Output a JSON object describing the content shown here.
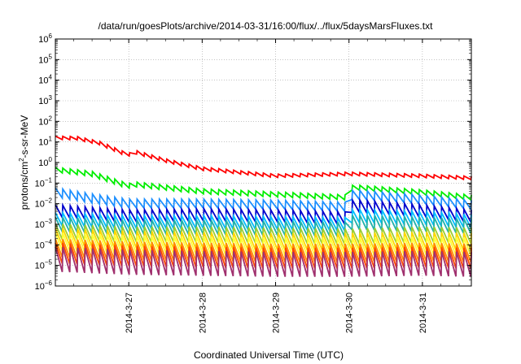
{
  "chart_data": {
    "type": "line",
    "title": "/data/run/goesPlots/archive/2014-03-31/16:00/flux/../flux/5daysMarsFluxes.txt",
    "xlabel": "Coordinated Universal Time (UTC)",
    "ylabel": "protons/cm²-s-sr-MeV",
    "ylabel_parts": {
      "pre": "protons/cm",
      "sup": "2",
      "post": "-s-sr-MeV"
    },
    "yscale": "log",
    "ylim_exp": [
      -6,
      6
    ],
    "ytick_exponents": [
      -6,
      -5,
      -4,
      -3,
      -2,
      -1,
      0,
      1,
      2,
      3,
      4,
      5,
      6
    ],
    "xlim": [
      "2014-03-26 00:00",
      "2014-03-31 16:00"
    ],
    "xticks": [
      "2014-3-27",
      "2014-3-28",
      "2014-3-29",
      "2014-3-30",
      "2014-3-31"
    ],
    "grid": true,
    "sawtooth_teeth": 56,
    "resets_day": [
      1.0,
      4.0
    ],
    "series": [
      {
        "color": "#ff0000",
        "trend": [
          [
            0.0,
            1.2
          ],
          [
            0.3,
            1.18
          ],
          [
            0.6,
            0.95
          ],
          [
            0.9,
            0.5
          ],
          [
            1.0,
            0.35
          ],
          [
            1.05,
            0.55
          ],
          [
            1.5,
            0.1
          ],
          [
            2.0,
            -0.3
          ],
          [
            3.0,
            -0.65
          ],
          [
            4.0,
            -0.55
          ],
          [
            5.0,
            -0.65
          ],
          [
            5.66,
            -0.75
          ]
        ],
        "amp": 0.08,
        "reset_amp": [
          0.25,
          0.2
        ]
      },
      {
        "color": "#00ee00",
        "trend": [
          [
            0.0,
            -0.35
          ],
          [
            0.5,
            -0.55
          ],
          [
            1.0,
            -1.15
          ],
          [
            1.05,
            -1.05
          ],
          [
            2.0,
            -1.4
          ],
          [
            3.0,
            -1.55
          ],
          [
            4.0,
            -1.7
          ],
          [
            4.05,
            -1.2
          ],
          [
            5.0,
            -1.45
          ],
          [
            5.66,
            -1.7
          ]
        ],
        "amp": 0.12,
        "reset_amp": [
          0.1,
          0.25
        ]
      },
      {
        "color": "#1e90ff",
        "trend": [
          [
            0.0,
            -1.45
          ],
          [
            0.5,
            -1.75
          ],
          [
            1.0,
            -2.0
          ],
          [
            2.0,
            -2.0
          ],
          [
            3.0,
            -2.05
          ],
          [
            4.0,
            -2.15
          ],
          [
            4.05,
            -1.55
          ],
          [
            5.0,
            -1.8
          ],
          [
            5.66,
            -2.05
          ]
        ],
        "amp": 0.22,
        "reset_amp": [
          0.15,
          0.3
        ]
      },
      {
        "color": "#0000cd",
        "trend": [
          [
            0.0,
            -2.35
          ],
          [
            1.0,
            -2.6
          ],
          [
            2.0,
            -2.55
          ],
          [
            3.0,
            -2.6
          ],
          [
            4.0,
            -2.7
          ],
          [
            4.05,
            -2.1
          ],
          [
            5.0,
            -2.35
          ],
          [
            5.66,
            -2.6
          ]
        ],
        "amp": 0.3,
        "reset_amp": [
          0.1,
          0.3
        ]
      },
      {
        "color": "#00bfff",
        "trend": [
          [
            0.0,
            -2.75
          ],
          [
            1.0,
            -2.9
          ],
          [
            2.0,
            -2.9
          ],
          [
            3.0,
            -2.95
          ],
          [
            4.0,
            -3.0
          ],
          [
            4.05,
            -2.6
          ],
          [
            5.0,
            -2.7
          ],
          [
            5.66,
            -2.85
          ]
        ],
        "amp": 0.32,
        "reset_amp": [
          0.1,
          0.25
        ]
      },
      {
        "color": "#20b2aa",
        "trend": [
          [
            0.0,
            -3.0
          ],
          [
            1.0,
            -3.15
          ],
          [
            2.0,
            -3.15
          ],
          [
            3.0,
            -3.2
          ],
          [
            4.0,
            -3.25
          ],
          [
            4.05,
            -2.9
          ],
          [
            5.0,
            -3.0
          ],
          [
            5.66,
            -3.1
          ]
        ],
        "amp": 0.35,
        "reset_amp": [
          0.1,
          0.2
        ]
      },
      {
        "color": "#9acd32",
        "trend": [
          [
            0.0,
            -3.35
          ],
          [
            1.0,
            -3.5
          ],
          [
            2.0,
            -3.5
          ],
          [
            3.0,
            -3.55
          ],
          [
            4.0,
            -3.6
          ],
          [
            5.0,
            -3.5
          ],
          [
            5.66,
            -3.55
          ]
        ],
        "amp": 0.38,
        "reset_amp": [
          0.1,
          0.15
        ]
      },
      {
        "color": "#ffd700",
        "trend": [
          [
            0.0,
            -3.6
          ],
          [
            1.0,
            -3.75
          ],
          [
            2.0,
            -3.8
          ],
          [
            3.0,
            -3.85
          ],
          [
            4.0,
            -3.85
          ],
          [
            5.0,
            -3.8
          ],
          [
            5.66,
            -3.85
          ]
        ],
        "amp": 0.42,
        "reset_amp": [
          0.1,
          0.15
        ]
      },
      {
        "color": "#ffff33",
        "trend": [
          [
            0.0,
            -3.85
          ],
          [
            1.0,
            -4.0
          ],
          [
            2.0,
            -4.05
          ],
          [
            3.0,
            -4.1
          ],
          [
            4.0,
            -4.1
          ],
          [
            5.0,
            -4.05
          ],
          [
            5.66,
            -4.1
          ]
        ],
        "amp": 0.45,
        "reset_amp": [
          0.1,
          0.1
        ]
      },
      {
        "color": "#ff8c00",
        "trend": [
          [
            0.0,
            -4.15
          ],
          [
            1.0,
            -4.3
          ],
          [
            2.0,
            -4.35
          ],
          [
            3.0,
            -4.4
          ],
          [
            4.0,
            -4.4
          ],
          [
            5.0,
            -4.35
          ],
          [
            5.66,
            -4.4
          ]
        ],
        "amp": 0.45,
        "reset_amp": [
          0.1,
          0.1
        ]
      },
      {
        "color": "#ff4500",
        "trend": [
          [
            0.0,
            -4.4
          ],
          [
            1.0,
            -4.55
          ],
          [
            2.0,
            -4.6
          ],
          [
            3.0,
            -4.65
          ],
          [
            4.0,
            -4.65
          ],
          [
            5.0,
            -4.6
          ],
          [
            5.66,
            -4.65
          ]
        ],
        "amp": 0.5,
        "reset_amp": [
          0.1,
          0.1
        ]
      },
      {
        "color": "#a0306e",
        "trend": [
          [
            0.0,
            -4.7
          ],
          [
            1.0,
            -4.85
          ],
          [
            2.0,
            -4.9
          ],
          [
            3.0,
            -4.95
          ],
          [
            4.0,
            -4.95
          ],
          [
            5.0,
            -4.9
          ],
          [
            5.66,
            -4.95
          ]
        ],
        "amp": 0.6,
        "reset_amp": [
          0.1,
          0.1
        ]
      }
    ]
  }
}
